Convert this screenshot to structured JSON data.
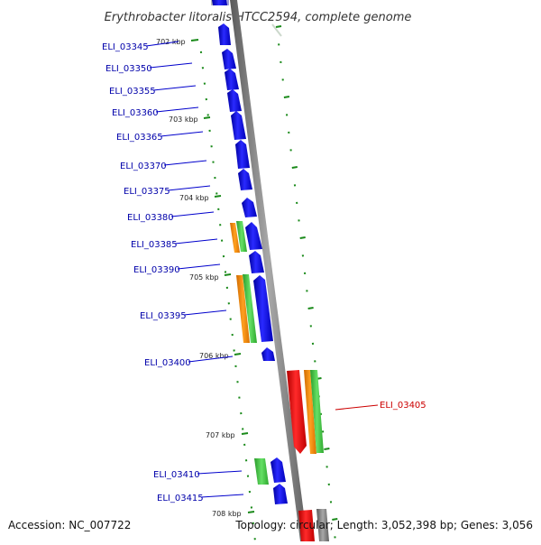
{
  "title": "Erythrobacter litoralis HTCC2594, complete genome",
  "footer": {
    "accession": "Accession: NC_007722",
    "topology": "Topology: circular; Length: 3,052,398 bp; Genes: 3,056"
  },
  "colors": {
    "forward_cds": "#0000ee",
    "reverse_cds": "#ee0000",
    "orange_feature": "#ff8c00",
    "green_feature": "#44cc44",
    "ticks": "#1a8a1a",
    "backbone": "#808080",
    "label_blue": "#0000aa",
    "label_red": "#cc0000"
  },
  "kbp_marks": [
    "702 kbp",
    "703 kbp",
    "704 kbp",
    "705 kbp",
    "706 kbp",
    "707 kbp",
    "708 kbp"
  ],
  "genes": [
    {
      "label": "ELI_03345",
      "strand": "forward"
    },
    {
      "label": "ELI_03350",
      "strand": "forward"
    },
    {
      "label": "ELI_03355",
      "strand": "forward"
    },
    {
      "label": "ELI_03360",
      "strand": "forward"
    },
    {
      "label": "ELI_03365",
      "strand": "forward"
    },
    {
      "label": "ELI_03370",
      "strand": "forward"
    },
    {
      "label": "ELI_03375",
      "strand": "forward"
    },
    {
      "label": "ELI_03380",
      "strand": "forward"
    },
    {
      "label": "ELI_03385",
      "strand": "forward"
    },
    {
      "label": "ELI_03390",
      "strand": "forward"
    },
    {
      "label": "ELI_03395",
      "strand": "forward"
    },
    {
      "label": "ELI_03400",
      "strand": "forward"
    },
    {
      "label": "ELI_03405",
      "strand": "reverse"
    },
    {
      "label": "ELI_03410",
      "strand": "forward"
    },
    {
      "label": "ELI_03415",
      "strand": "forward"
    }
  ]
}
